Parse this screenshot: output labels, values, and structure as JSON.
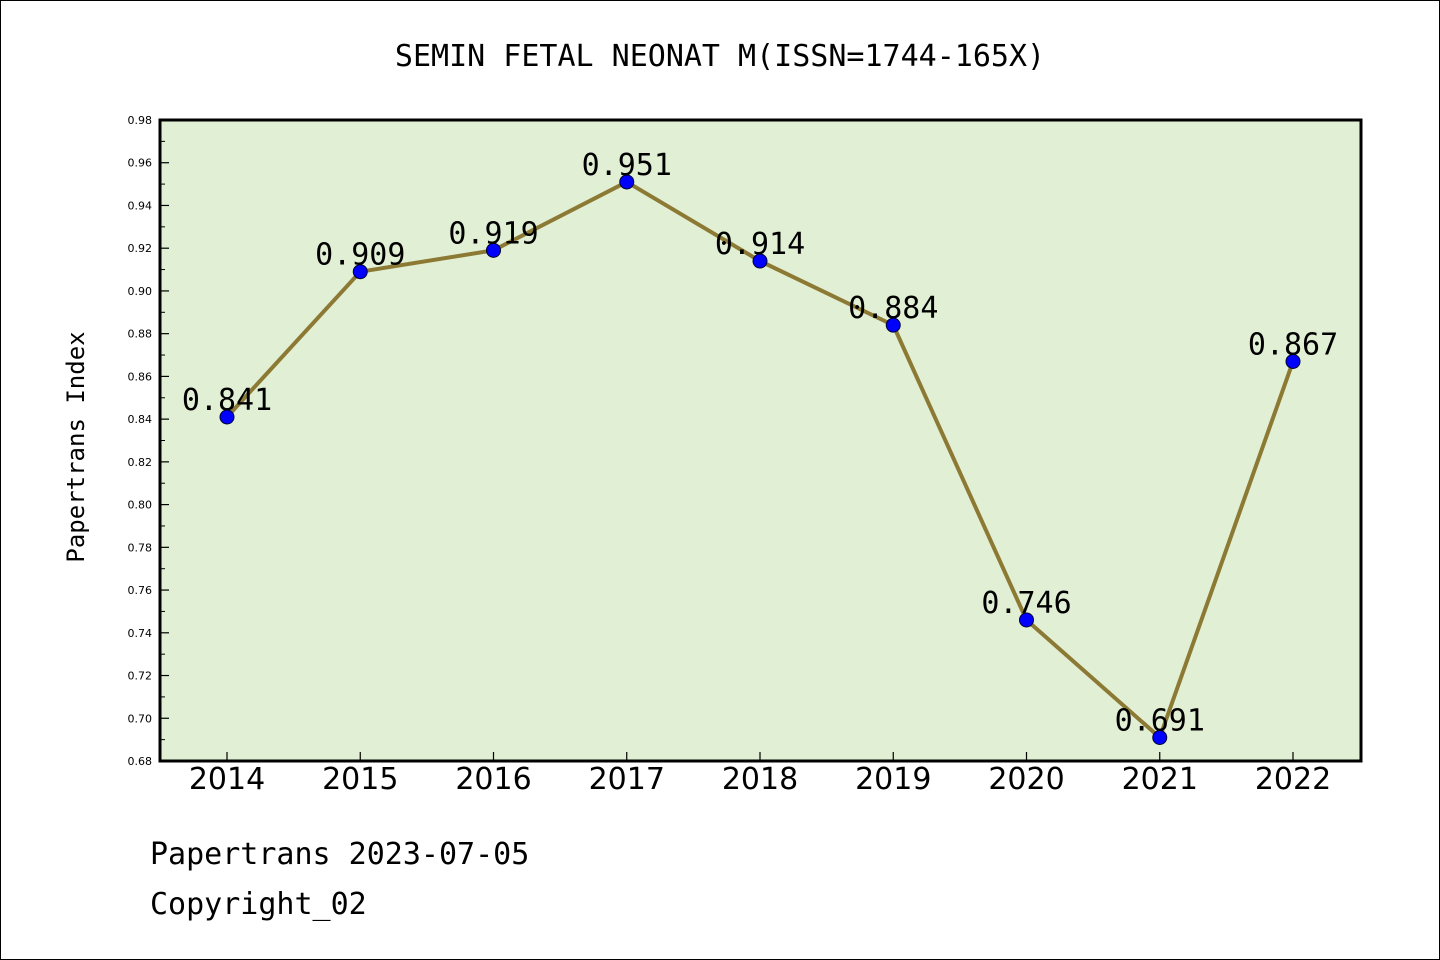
{
  "chart_data": {
    "type": "line",
    "title": "SEMIN FETAL NEONAT M(ISSN=1744-165X)",
    "ylabel": "Papertrans Index",
    "xlabel": "",
    "categories": [
      "2014",
      "2015",
      "2016",
      "2017",
      "2018",
      "2019",
      "2020",
      "2021",
      "2022"
    ],
    "values": [
      0.841,
      0.909,
      0.919,
      0.951,
      0.914,
      0.884,
      0.746,
      0.691,
      0.867
    ],
    "value_labels": [
      "0.841",
      "0.909",
      "0.919",
      "0.951",
      "0.914",
      "0.884",
      "0.746",
      "0.691",
      "0.867"
    ],
    "ylim": [
      0.68,
      0.98
    ],
    "yticks": [
      0.68,
      0.7,
      0.72,
      0.74,
      0.76,
      0.78,
      0.8,
      0.82,
      0.84,
      0.86,
      0.88,
      0.9,
      0.92,
      0.94,
      0.96,
      0.98
    ],
    "ytick_labels": [
      "0.68",
      "0.70",
      "0.72",
      "0.74",
      "0.76",
      "0.78",
      "0.80",
      "0.82",
      "0.84",
      "0.86",
      "0.88",
      "0.90",
      "0.92",
      "0.94",
      "0.96",
      "0.98"
    ],
    "grid": false,
    "colors": {
      "plot_background": "#e1efd4",
      "line": "#8c7a34",
      "marker": "#0000ff",
      "axis": "#000000"
    }
  },
  "footer": {
    "line1": "Papertrans 2023-07-05",
    "line2": "Copyright_02"
  }
}
